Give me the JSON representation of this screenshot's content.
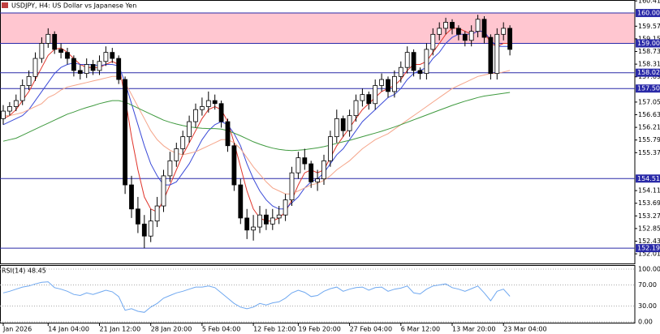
{
  "chart_data": {
    "type": "candlestick",
    "title": "USDJPY, H4:  US Dollar vs Japanese Yen",
    "categories": [
      "Jan 2026",
      null,
      null,
      null,
      null,
      null,
      null,
      "14 Jan 04:00",
      null,
      null,
      null,
      null,
      null,
      null,
      null,
      "21 Jan 12:00",
      null,
      null,
      null,
      null,
      null,
      null,
      null,
      "28 Jan 20:00",
      null,
      null,
      null,
      null,
      null,
      null,
      null,
      "5 Feb 04:00",
      null,
      null,
      null,
      null,
      null,
      null,
      null,
      "12 Feb 12:00",
      null,
      null,
      null,
      null,
      null,
      null,
      "19 Feb 20:00",
      null,
      null,
      null,
      null,
      null,
      null,
      null,
      "27 Feb 04:00",
      null,
      null,
      null,
      null,
      null,
      null,
      null,
      "6 Mar 12:00",
      null,
      null,
      null,
      null,
      null,
      null,
      null,
      "13 Mar 20:00",
      null,
      null,
      null,
      null,
      null,
      null,
      null,
      "23 Mar 04:00",
      null
    ],
    "open": [
      156.5,
      156.75,
      156.9,
      157.1,
      157.6,
      157.9,
      158.5,
      159.0,
      159.3,
      158.8,
      158.7,
      158.5,
      158.1,
      158.0,
      158.3,
      158.1,
      158.4,
      158.7,
      158.5,
      157.8,
      154.3,
      153.5,
      153.0,
      152.6,
      153.1,
      153.6,
      154.6,
      155.1,
      155.5,
      155.9,
      156.4,
      156.8,
      156.9,
      157.1,
      157.0,
      156.4,
      155.6,
      154.3,
      153.2,
      152.8,
      152.9,
      153.3,
      153.0,
      153.2,
      153.3,
      153.8,
      154.7,
      155.2,
      155.0,
      154.4,
      154.5,
      155.1,
      155.9,
      156.5,
      156.1,
      156.6,
      157.1,
      157.3,
      157.0,
      157.6,
      157.8,
      157.4,
      157.9,
      158.2,
      158.7,
      158.1,
      158.0,
      158.8,
      159.3,
      159.5,
      159.7,
      159.5,
      159.3,
      159.1,
      159.4,
      159.8,
      159.2,
      158.0,
      159.3,
      159.5
    ],
    "high": [
      156.95,
      157.05,
      157.3,
      157.8,
      158.1,
      158.7,
      159.2,
      159.5,
      159.4,
      159.0,
      158.85,
      158.6,
      158.3,
      158.5,
      158.45,
      158.6,
      158.9,
      158.85,
      158.6,
      157.9,
      154.6,
      153.9,
      153.3,
      153.5,
      153.9,
      154.8,
      155.4,
      155.7,
      156.1,
      156.6,
      157.0,
      157.2,
      157.4,
      157.3,
      157.1,
      156.5,
      155.7,
      154.5,
      153.5,
      153.3,
      153.6,
      153.5,
      153.5,
      153.6,
      154.0,
      154.9,
      155.4,
      155.5,
      155.1,
      154.8,
      155.3,
      156.1,
      156.8,
      156.6,
      156.8,
      157.3,
      157.5,
      157.4,
      157.8,
      158.0,
      157.9,
      158.1,
      158.4,
      158.9,
      158.8,
      158.2,
      159.0,
      159.5,
      159.7,
      159.85,
      159.8,
      159.6,
      159.4,
      159.6,
      159.95,
      159.9,
      159.3,
      159.5,
      159.7,
      159.6
    ],
    "low": [
      156.3,
      156.6,
      156.75,
      156.95,
      157.45,
      157.75,
      158.35,
      158.85,
      158.65,
      158.5,
      158.3,
      157.9,
      157.8,
      157.85,
      157.95,
      157.95,
      158.25,
      158.35,
      157.65,
      154.0,
      153.2,
      152.7,
      152.2,
      152.4,
      152.9,
      153.4,
      154.4,
      154.9,
      155.3,
      155.7,
      156.2,
      156.6,
      156.7,
      156.8,
      156.2,
      155.4,
      154.1,
      153.0,
      152.5,
      152.45,
      152.7,
      152.8,
      152.8,
      153.0,
      153.1,
      153.6,
      154.5,
      154.8,
      154.2,
      154.1,
      154.3,
      154.9,
      155.7,
      155.9,
      155.9,
      156.4,
      156.9,
      156.8,
      156.8,
      157.4,
      157.2,
      157.2,
      157.7,
      158.0,
      157.9,
      157.8,
      157.8,
      158.6,
      159.1,
      159.3,
      159.3,
      159.1,
      158.9,
      158.9,
      159.2,
      159.0,
      157.8,
      157.8,
      159.1,
      158.6
    ],
    "close": [
      156.75,
      156.9,
      157.1,
      157.6,
      157.9,
      158.5,
      159.0,
      159.3,
      158.8,
      158.7,
      158.5,
      158.1,
      158.0,
      158.3,
      158.1,
      158.4,
      158.7,
      158.5,
      157.8,
      154.3,
      153.5,
      153.0,
      152.6,
      153.1,
      153.6,
      154.6,
      155.1,
      155.5,
      155.9,
      156.4,
      156.8,
      156.9,
      157.1,
      157.0,
      156.4,
      155.6,
      154.3,
      153.2,
      152.8,
      152.9,
      153.3,
      153.0,
      153.2,
      153.3,
      153.8,
      154.7,
      155.2,
      155.0,
      154.4,
      154.5,
      155.1,
      155.9,
      156.5,
      156.1,
      156.6,
      157.1,
      157.3,
      157.0,
      157.6,
      157.8,
      157.4,
      157.9,
      158.2,
      158.7,
      158.1,
      158.0,
      158.8,
      159.3,
      159.5,
      159.7,
      159.5,
      159.3,
      159.1,
      159.4,
      159.8,
      159.2,
      158.0,
      159.3,
      159.5,
      158.8
    ],
    "up_color": "#ffffff",
    "down_color": "#000000",
    "series": [
      {
        "color": "#e0352b",
        "values": [
          156.5,
          156.6,
          156.8,
          157.1,
          157.4,
          157.8,
          158.2,
          158.6,
          158.8,
          158.85,
          158.7,
          158.5,
          158.3,
          158.2,
          158.2,
          158.2,
          158.3,
          158.4,
          158.3,
          157.2,
          155.9,
          154.8,
          153.9,
          153.5,
          153.4,
          153.8,
          154.3,
          154.8,
          155.3,
          155.7,
          156.1,
          156.5,
          156.8,
          156.9,
          156.8,
          156.4,
          155.7,
          154.9,
          154.1,
          153.5,
          153.2,
          153.1,
          153.1,
          153.2,
          153.4,
          153.8,
          154.3,
          154.7,
          154.8,
          154.7,
          154.8,
          155.2,
          155.6,
          155.9,
          156.2,
          156.5,
          156.8,
          157.0,
          157.2,
          157.4,
          157.5,
          157.6,
          157.8,
          158.1,
          158.3,
          158.3,
          158.4,
          158.7,
          159.0,
          159.3,
          159.5,
          159.5,
          159.4,
          159.3,
          159.4,
          159.4,
          159.0,
          158.9,
          159.0,
          159.0
        ]
      },
      {
        "color": "#3b4bd8",
        "values": [
          156.3,
          156.4,
          156.5,
          156.6,
          156.8,
          157.1,
          157.4,
          157.7,
          158.0,
          158.2,
          158.3,
          158.35,
          158.3,
          158.3,
          158.3,
          158.25,
          158.3,
          158.3,
          158.25,
          157.7,
          157.0,
          156.3,
          155.6,
          155.0,
          154.6,
          154.3,
          154.3,
          154.4,
          154.7,
          155.0,
          155.4,
          155.8,
          156.1,
          156.3,
          156.4,
          156.3,
          156.0,
          155.6,
          155.0,
          154.5,
          154.1,
          153.8,
          153.6,
          153.5,
          153.5,
          153.7,
          153.9,
          154.2,
          154.4,
          154.5,
          154.7,
          155.0,
          155.3,
          155.5,
          155.8,
          156.1,
          156.4,
          156.6,
          156.8,
          157.0,
          157.2,
          157.3,
          157.5,
          157.8,
          158.0,
          158.1,
          158.2,
          158.5,
          158.7,
          159.0,
          159.2,
          159.3,
          159.3,
          159.3,
          159.4,
          159.4,
          159.1,
          158.9,
          158.9,
          158.9
        ]
      },
      {
        "color": "#f5a58a",
        "values": [
          156.6,
          156.6,
          156.65,
          156.7,
          156.8,
          156.9,
          157.0,
          157.2,
          157.3,
          157.45,
          157.55,
          157.6,
          157.65,
          157.7,
          157.75,
          157.8,
          157.85,
          157.9,
          157.9,
          157.7,
          157.3,
          156.9,
          156.5,
          156.1,
          155.8,
          155.6,
          155.45,
          155.35,
          155.3,
          155.35,
          155.4,
          155.5,
          155.6,
          155.7,
          155.8,
          155.8,
          155.7,
          155.5,
          155.2,
          154.9,
          154.65,
          154.4,
          154.2,
          154.1,
          154.0,
          154.0,
          154.1,
          154.2,
          154.3,
          154.35,
          154.45,
          154.6,
          154.8,
          154.95,
          155.1,
          155.3,
          155.5,
          155.65,
          155.8,
          155.9,
          156.0,
          156.15,
          156.3,
          156.45,
          156.6,
          156.75,
          156.9,
          157.05,
          157.2,
          157.35,
          157.5,
          157.6,
          157.7,
          157.8,
          157.9,
          157.95,
          158.0,
          158.0,
          158.05,
          158.1
        ]
      },
      {
        "color": "#3f9a3f",
        "values": [
          155.75,
          155.8,
          155.85,
          155.95,
          156.05,
          156.15,
          156.25,
          156.35,
          156.45,
          156.55,
          156.65,
          156.72,
          156.8,
          156.87,
          156.93,
          157.0,
          157.05,
          157.1,
          157.1,
          157.05,
          156.95,
          156.85,
          156.75,
          156.65,
          156.55,
          156.45,
          156.38,
          156.32,
          156.27,
          156.23,
          156.2,
          156.18,
          156.17,
          156.17,
          156.15,
          156.1,
          156.02,
          155.93,
          155.83,
          155.73,
          155.65,
          155.58,
          155.52,
          155.48,
          155.45,
          155.44,
          155.45,
          155.47,
          155.5,
          155.53,
          155.57,
          155.62,
          155.68,
          155.73,
          155.78,
          155.84,
          155.9,
          155.96,
          156.02,
          156.08,
          156.15,
          156.22,
          156.3,
          156.38,
          156.46,
          156.54,
          156.62,
          156.7,
          156.78,
          156.86,
          156.94,
          157.01,
          157.08,
          157.14,
          157.2,
          157.25,
          157.28,
          157.31,
          157.34,
          157.37
        ]
      }
    ],
    "ylim": [
      151.69,
      160.44
    ],
    "yticks": [
      {
        "value": 160.41,
        "label": "160.410"
      },
      {
        "value": 159.57,
        "label": "159.570"
      },
      {
        "value": 159.15,
        "label": "159.150"
      },
      {
        "value": 158.73,
        "label": "158.730"
      },
      {
        "value": 158.31,
        "label": "158.310"
      },
      {
        "value": 157.89,
        "label": "157.890"
      },
      {
        "value": 157.05,
        "label": "157.050"
      },
      {
        "value": 156.63,
        "label": "156.630"
      },
      {
        "value": 156.21,
        "label": "156.210"
      },
      {
        "value": 155.79,
        "label": "155.790"
      },
      {
        "value": 155.37,
        "label": "155.370"
      },
      {
        "value": 154.11,
        "label": "154.110"
      },
      {
        "value": 153.69,
        "label": "153.690"
      },
      {
        "value": 153.27,
        "label": "153.270"
      },
      {
        "value": 152.85,
        "label": "152.850"
      },
      {
        "value": 152.43,
        "label": "152.430"
      },
      {
        "value": 152.01,
        "label": "152.010"
      }
    ],
    "levels": [
      160.008,
      {
        "value": 159.0,
        "label": "159.000"
      },
      158.025,
      {
        "value": 157.5,
        "label": "157.500"
      },
      {
        "value": 154.51,
        "label": "154.510"
      },
      152.199
    ],
    "level_color": "#2a2aa8",
    "zone_color": "#ffc6d0",
    "indicator": {
      "label": "RSI(14) 48.45",
      "color": "#6fa8f0",
      "ylim": [
        0,
        100
      ],
      "yticks": [
        {
          "value": 100,
          "label": "100.00"
        },
        {
          "value": 70,
          "label": "70.00"
        },
        {
          "value": 30,
          "label": "30.00"
        },
        {
          "value": 0,
          "label": "0.00"
        }
      ],
      "values": [
        55,
        58,
        62,
        66,
        68,
        72,
        75,
        76,
        65,
        62,
        58,
        52,
        50,
        55,
        52,
        56,
        60,
        57,
        48,
        22,
        25,
        20,
        18,
        28,
        35,
        45,
        50,
        55,
        58,
        62,
        66,
        66,
        68,
        65,
        55,
        45,
        35,
        28,
        25,
        28,
        35,
        32,
        36,
        38,
        45,
        55,
        60,
        56,
        48,
        50,
        58,
        63,
        66,
        58,
        62,
        65,
        66,
        60,
        65,
        66,
        58,
        62,
        64,
        68,
        55,
        53,
        62,
        68,
        70,
        72,
        65,
        62,
        58,
        63,
        68,
        55,
        40,
        58,
        62,
        48.45
      ]
    }
  }
}
